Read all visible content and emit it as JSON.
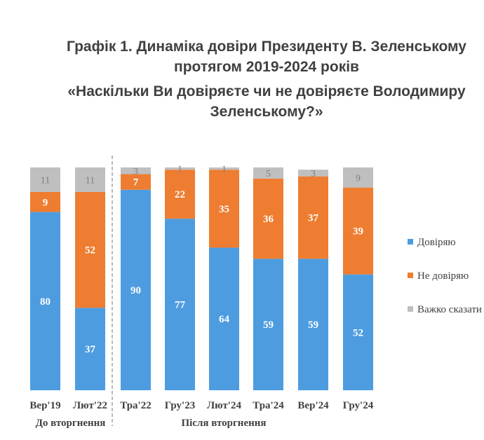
{
  "chart_data": {
    "type": "bar",
    "stacked": true,
    "title_line1": "Графік 1. Динаміка довіри Президенту В. Зеленському",
    "title_line2": "протягом 2019-2024 років",
    "subtitle_line1": "«Наскільки Ви довіряєте чи не довіряєте Володимиру",
    "subtitle_line2": "Зеленському?»",
    "categories": [
      "Вер'19",
      "Лют'22",
      "Тра'22",
      "Гру'23",
      "Лют'24",
      "Тра'24",
      "Вер'24",
      "Гру'24"
    ],
    "series": [
      {
        "name": "Довіряю",
        "color": "#4e9ce0",
        "values": [
          80,
          37,
          90,
          77,
          64,
          59,
          59,
          52
        ]
      },
      {
        "name": "Не довіряю",
        "color": "#ee7d31",
        "values": [
          9,
          52,
          7,
          22,
          35,
          36,
          37,
          39
        ]
      },
      {
        "name": "Важко сказати",
        "color": "#bfbfbf",
        "values": [
          11,
          11,
          3,
          1,
          1,
          5,
          3,
          9
        ]
      }
    ],
    "groups": [
      {
        "label": "До вторгнення",
        "from": 0,
        "to": 1
      },
      {
        "label": "Після вторгнення",
        "from": 2,
        "to": 7
      }
    ],
    "ylim": [
      0,
      100
    ],
    "legend_position": "right",
    "grid": false
  }
}
